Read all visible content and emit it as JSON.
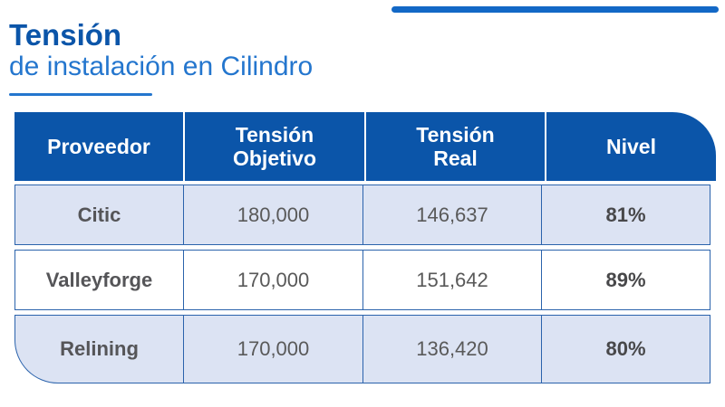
{
  "title": {
    "main": "Tensión",
    "subtitle": "de instalación en Cilindro"
  },
  "colors": {
    "accent_bar": "#1368C6",
    "title_main": "#0B55A9",
    "title_sub": "#2476CE",
    "header_bg": "#0B55A9",
    "row_alt_bg": "#DCE3F3",
    "cell_border": "#2B63AC",
    "text_gray": "#595959"
  },
  "chart_data": {
    "type": "table",
    "title": "Tensión de instalación en Cilindro",
    "columns": [
      "Proveedor",
      "Tensión Objetivo",
      "Tensión Real",
      "Nivel"
    ],
    "rows": [
      {
        "proveedor": "Citic",
        "tension_objetivo": 180000,
        "tension_real": 146637,
        "nivel_pct": 81
      },
      {
        "proveedor": "Valleyforge",
        "tension_objetivo": 170000,
        "tension_real": 151642,
        "nivel_pct": 89
      },
      {
        "proveedor": "Relining",
        "tension_objetivo": 170000,
        "tension_real": 136420,
        "nivel_pct": 80
      }
    ]
  },
  "table": {
    "columns": [
      "Proveedor",
      "Tensión\nObjetivo",
      "Tensión\nReal",
      "Nivel"
    ],
    "rows": [
      {
        "proveedor": "Citic",
        "tension_objetivo": "180,000",
        "tension_real": "146,637",
        "nivel": "81%"
      },
      {
        "proveedor": "Valleyforge",
        "tension_objetivo": "170,000",
        "tension_real": "151,642",
        "nivel": "89%"
      },
      {
        "proveedor": "Relining",
        "tension_objetivo": "170,000",
        "tension_real": "136,420",
        "nivel": "80%"
      }
    ]
  }
}
